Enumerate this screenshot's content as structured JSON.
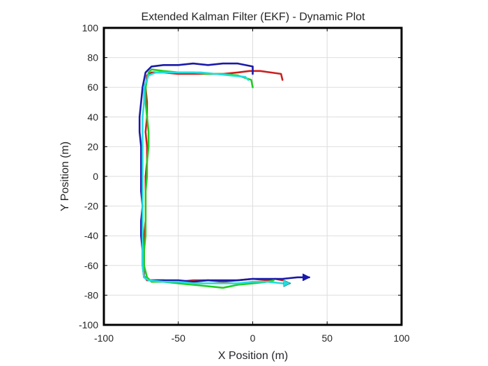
{
  "chart_data": {
    "type": "line",
    "title": "Extended Kalman Filter (EKF) - Dynamic Plot",
    "xlabel": "X Position (m)",
    "ylabel": "Y Position (m)",
    "xlim": [
      -100,
      100
    ],
    "ylim": [
      -100,
      100
    ],
    "xticks": [
      -100,
      -50,
      0,
      50,
      100
    ],
    "yticks": [
      -100,
      -80,
      -60,
      -40,
      -20,
      0,
      20,
      40,
      60,
      80,
      100
    ],
    "xtick_labels": [
      "-100",
      "-50",
      "0",
      "50",
      "100"
    ],
    "ytick_labels": [
      "-100",
      "-80",
      "-60",
      "-40",
      "-20",
      "0",
      "20",
      "40",
      "60",
      "80",
      "100"
    ],
    "grid": true,
    "legend": "none",
    "series": [
      {
        "color": "#cc1f1f",
        "points": [
          [
            20,
            65
          ],
          [
            19,
            69
          ],
          [
            12,
            70
          ],
          [
            5,
            71
          ],
          [
            -2,
            71
          ],
          [
            -10,
            70
          ],
          [
            -20,
            69
          ],
          [
            -30,
            69
          ],
          [
            -40,
            69
          ],
          [
            -50,
            69
          ],
          [
            -60,
            70
          ],
          [
            -68,
            70
          ],
          [
            -71,
            68
          ],
          [
            -72,
            60
          ],
          [
            -71,
            50
          ],
          [
            -71,
            40
          ],
          [
            -72,
            30
          ],
          [
            -71,
            20
          ],
          [
            -71,
            10
          ],
          [
            -72,
            0
          ],
          [
            -72,
            -10
          ],
          [
            -72,
            -20
          ],
          [
            -72,
            -30
          ],
          [
            -73,
            -40
          ],
          [
            -73,
            -50
          ],
          [
            -73,
            -60
          ],
          [
            -73,
            -67
          ],
          [
            -71,
            -70
          ],
          [
            -60,
            -70
          ],
          [
            -50,
            -71
          ],
          [
            -40,
            -70
          ],
          [
            -30,
            -70
          ],
          [
            -20,
            -71
          ],
          [
            -10,
            -70
          ],
          [
            0,
            -69
          ],
          [
            10,
            -70
          ],
          [
            15,
            -69
          ],
          [
            20,
            -70
          ]
        ],
        "arrow": "none"
      },
      {
        "color": "#1a1aaa",
        "points": [
          [
            0,
            69
          ],
          [
            0,
            74
          ],
          [
            -10,
            76
          ],
          [
            -20,
            76
          ],
          [
            -30,
            75
          ],
          [
            -40,
            76
          ],
          [
            -50,
            75
          ],
          [
            -60,
            75
          ],
          [
            -68,
            74
          ],
          [
            -72,
            70
          ],
          [
            -74,
            60
          ],
          [
            -75,
            50
          ],
          [
            -76,
            40
          ],
          [
            -76,
            30
          ],
          [
            -75,
            20
          ],
          [
            -75,
            10
          ],
          [
            -75,
            0
          ],
          [
            -75,
            -10
          ],
          [
            -74,
            -20
          ],
          [
            -75,
            -30
          ],
          [
            -75,
            -40
          ],
          [
            -74,
            -50
          ],
          [
            -74,
            -60
          ],
          [
            -73,
            -68
          ],
          [
            -70,
            -70
          ],
          [
            -60,
            -70
          ],
          [
            -50,
            -70
          ],
          [
            -40,
            -71
          ],
          [
            -30,
            -70
          ],
          [
            -20,
            -70
          ],
          [
            -10,
            -70
          ],
          [
            0,
            -69
          ],
          [
            10,
            -69
          ],
          [
            20,
            -69
          ],
          [
            30,
            -68
          ],
          [
            38,
            -68
          ]
        ],
        "arrow": "end"
      },
      {
        "color": "#22cc22",
        "points": [
          [
            0,
            60
          ],
          [
            -1,
            65
          ],
          [
            -10,
            68
          ],
          [
            -20,
            69
          ],
          [
            -30,
            69
          ],
          [
            -40,
            70
          ],
          [
            -50,
            70
          ],
          [
            -60,
            71
          ],
          [
            -68,
            72
          ],
          [
            -70,
            70
          ],
          [
            -72,
            60
          ],
          [
            -72,
            50
          ],
          [
            -71,
            40
          ],
          [
            -70,
            30
          ],
          [
            -70,
            20
          ],
          [
            -71,
            10
          ],
          [
            -71,
            0
          ],
          [
            -72,
            -10
          ],
          [
            -72,
            -20
          ],
          [
            -72,
            -30
          ],
          [
            -72,
            -40
          ],
          [
            -73,
            -50
          ],
          [
            -73,
            -60
          ],
          [
            -71,
            -68
          ],
          [
            -68,
            -71
          ],
          [
            -60,
            -71
          ],
          [
            -50,
            -72
          ],
          [
            -40,
            -73
          ],
          [
            -30,
            -74
          ],
          [
            -20,
            -75
          ],
          [
            -10,
            -73
          ],
          [
            0,
            -72
          ],
          [
            10,
            -71
          ],
          [
            14,
            -70
          ]
        ],
        "arrow": "none"
      },
      {
        "color": "#22dddd",
        "points": [
          [
            -3,
            65
          ],
          [
            -5,
            67
          ],
          [
            -15,
            68
          ],
          [
            -25,
            69
          ],
          [
            -35,
            70
          ],
          [
            -45,
            70
          ],
          [
            -55,
            70
          ],
          [
            -65,
            70
          ],
          [
            -70,
            68
          ],
          [
            -73,
            60
          ],
          [
            -73,
            50
          ],
          [
            -74,
            40
          ],
          [
            -74,
            30
          ],
          [
            -74,
            20
          ],
          [
            -74,
            10
          ],
          [
            -74,
            0
          ],
          [
            -74,
            -10
          ],
          [
            -74,
            -20
          ],
          [
            -74,
            -30
          ],
          [
            -74,
            -40
          ],
          [
            -74,
            -50
          ],
          [
            -74,
            -60
          ],
          [
            -73,
            -68
          ],
          [
            -70,
            -70
          ],
          [
            -60,
            -71
          ],
          [
            -50,
            -71
          ],
          [
            -40,
            -72
          ],
          [
            -30,
            -72
          ],
          [
            -20,
            -72
          ],
          [
            -10,
            -72
          ],
          [
            0,
            -71
          ],
          [
            10,
            -71
          ],
          [
            20,
            -72
          ],
          [
            25,
            -72
          ]
        ],
        "arrow": "end"
      }
    ]
  }
}
